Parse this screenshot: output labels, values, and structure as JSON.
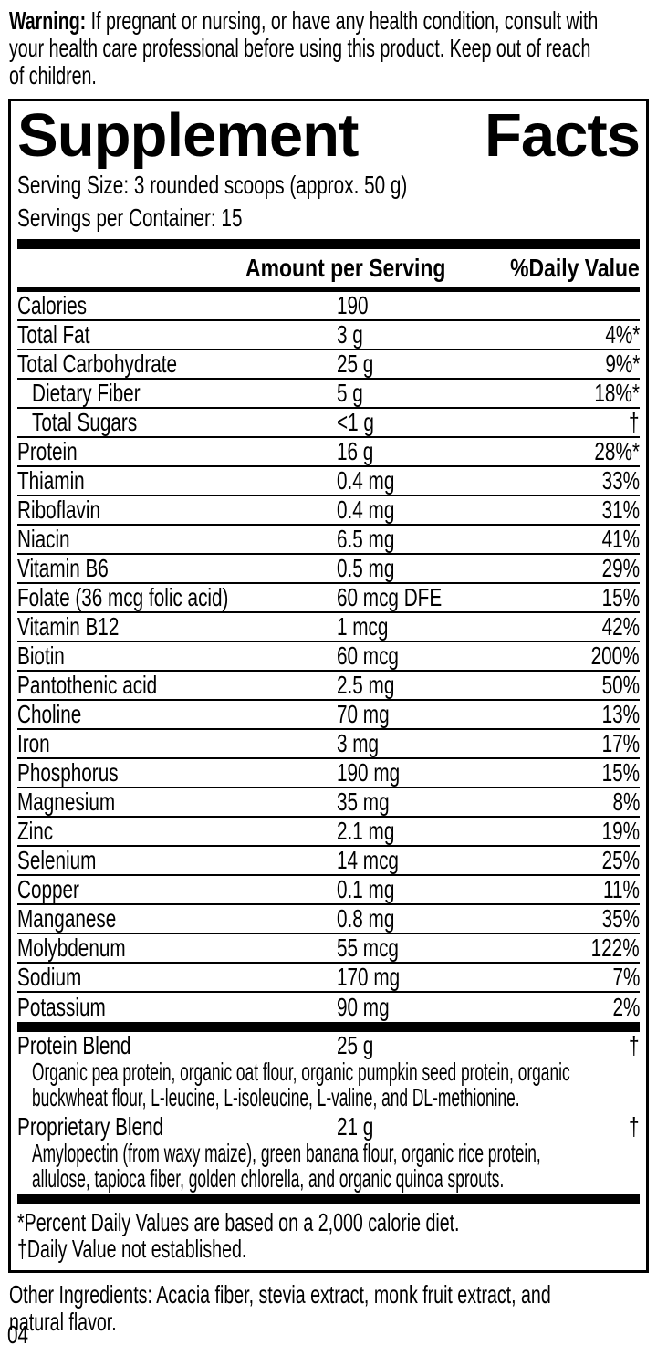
{
  "colors": {
    "text": "#000000",
    "background": "#ffffff"
  },
  "warning": {
    "label": "Warning:",
    "text": "If pregnant or nursing, or have any health condition, consult with\nyour health care professional before using this product. Keep out of reach\nof children."
  },
  "panel": {
    "title_left": "Supplement",
    "title_right": "Facts",
    "serving_size": "Serving Size: 3 rounded scoops (approx. 50 g)",
    "servings_per_container": "Servings per Container: 15",
    "col_amount": "Amount per Serving",
    "col_dv": "%Daily Value",
    "rows": [
      {
        "label": "Calories",
        "amount": "190",
        "dv": ""
      },
      {
        "label": "Total Fat",
        "amount": "3 g",
        "dv": "4%*"
      },
      {
        "label": "Total Carbohydrate",
        "amount": "25 g",
        "dv": "9%*"
      },
      {
        "label": "Dietary Fiber",
        "amount": "5 g",
        "dv": "18%*",
        "indent": true
      },
      {
        "label": "Total Sugars",
        "amount": "<1 g",
        "dv": "†",
        "indent": true
      },
      {
        "label": "Protein",
        "amount": "16 g",
        "dv": "28%*"
      },
      {
        "label": "Thiamin",
        "amount": "0.4 mg",
        "dv": "33%"
      },
      {
        "label": "Riboflavin",
        "amount": "0.4 mg",
        "dv": "31%"
      },
      {
        "label": "Niacin",
        "amount": "6.5 mg",
        "dv": "41%"
      },
      {
        "label": "Vitamin B6",
        "amount": "0.5 mg",
        "dv": "29%"
      },
      {
        "label": "Folate (36 mcg folic acid)",
        "amount": "60 mcg DFE",
        "dv": "15%"
      },
      {
        "label": "Vitamin B12",
        "amount": "1 mcg",
        "dv": "42%"
      },
      {
        "label": "Biotin",
        "amount": "60 mcg",
        "dv": "200%"
      },
      {
        "label": "Pantothenic acid",
        "amount": "2.5 mg",
        "dv": "50%"
      },
      {
        "label": "Choline",
        "amount": "70 mg",
        "dv": "13%"
      },
      {
        "label": "Iron",
        "amount": "3 mg",
        "dv": "17%"
      },
      {
        "label": "Phosphorus",
        "amount": "190 mg",
        "dv": "15%"
      },
      {
        "label": "Magnesium",
        "amount": "35 mg",
        "dv": "8%"
      },
      {
        "label": "Zinc",
        "amount": "2.1 mg",
        "dv": "19%"
      },
      {
        "label": "Selenium",
        "amount": "14 mcg",
        "dv": "25%"
      },
      {
        "label": "Copper",
        "amount": "0.1 mg",
        "dv": "11%"
      },
      {
        "label": "Manganese",
        "amount": "0.8 mg",
        "dv": "35%"
      },
      {
        "label": "Molybdenum",
        "amount": "55 mcg",
        "dv": "122%"
      },
      {
        "label": "Sodium",
        "amount": "170 mg",
        "dv": "7%"
      },
      {
        "label": "Potassium",
        "amount": "90 mg",
        "dv": "2%"
      }
    ],
    "blends": [
      {
        "label": "Protein Blend",
        "amount": "25 g",
        "dv": "†",
        "ingredients": "Organic pea protein, organic oat flour, organic pumpkin seed protein, organic\nbuckwheat flour, L-leucine, L-isoleucine, L-valine, and DL-methionine."
      },
      {
        "label": "Proprietary Blend",
        "amount": "21 g",
        "dv": "†",
        "ingredients": "Amylopectin (from waxy maize), green banana flour, organic rice protein,\nallulose, tapioca fiber, golden chlorella, and organic quinoa sprouts."
      }
    ],
    "footnotes": [
      "*Percent Daily Values are based on a 2,000 calorie diet.",
      "†Daily Value not established."
    ]
  },
  "other_ingredients": "Other Ingredients: Acacia fiber, stevia extract, monk fruit extract, and\nnatural flavor.",
  "page_number": "04"
}
